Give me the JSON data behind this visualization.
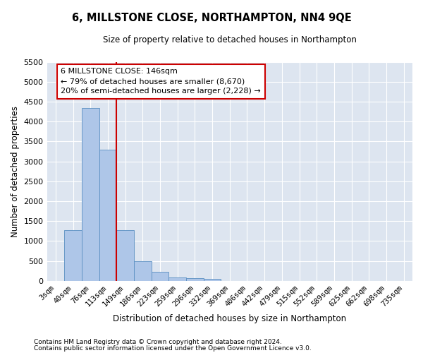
{
  "title": "6, MILLSTONE CLOSE, NORTHAMPTON, NN4 9QE",
  "subtitle": "Size of property relative to detached houses in Northampton",
  "xlabel": "Distribution of detached houses by size in Northampton",
  "ylabel": "Number of detached properties",
  "bar_labels": [
    "3sqm",
    "40sqm",
    "76sqm",
    "113sqm",
    "149sqm",
    "186sqm",
    "223sqm",
    "259sqm",
    "296sqm",
    "332sqm",
    "369sqm",
    "406sqm",
    "442sqm",
    "479sqm",
    "515sqm",
    "552sqm",
    "589sqm",
    "625sqm",
    "662sqm",
    "698sqm",
    "735sqm"
  ],
  "bar_heights": [
    0,
    1270,
    4350,
    3300,
    1270,
    490,
    220,
    90,
    60,
    50,
    0,
    0,
    0,
    0,
    0,
    0,
    0,
    0,
    0,
    0,
    0
  ],
  "bar_color": "#aec6e8",
  "bar_edge_color": "#5a8fc2",
  "vline_color": "#cc0000",
  "annotation_text": "6 MILLSTONE CLOSE: 146sqm\n← 79% of detached houses are smaller (8,670)\n20% of semi-detached houses are larger (2,228) →",
  "annotation_box_color": "#ffffff",
  "annotation_box_edge": "#cc0000",
  "ylim": [
    0,
    5500
  ],
  "yticks": [
    0,
    500,
    1000,
    1500,
    2000,
    2500,
    3000,
    3500,
    4000,
    4500,
    5000,
    5500
  ],
  "bg_color": "#dde5f0",
  "footer_line1": "Contains HM Land Registry data © Crown copyright and database right 2024.",
  "footer_line2": "Contains public sector information licensed under the Open Government Licence v3.0."
}
